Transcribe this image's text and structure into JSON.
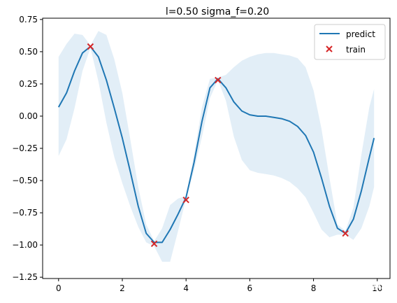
{
  "chart_data": {
    "type": "line",
    "title": "l=0.50 sigma_f=0.20",
    "xlabel": "",
    "ylabel": "",
    "xlim": [
      -0.5,
      10.4
    ],
    "ylim": [
      -1.26,
      0.76
    ],
    "x_ticks": [
      0,
      2,
      4,
      6,
      8,
      10
    ],
    "x_tick_labels": [
      "0",
      "2",
      "4",
      "6",
      "8",
      "10"
    ],
    "y_ticks": [
      0.75,
      0.5,
      0.25,
      0.0,
      -0.25,
      -0.5,
      -0.75,
      -1.0,
      -1.25
    ],
    "y_tick_labels": [
      "0.75",
      "0.50",
      "0.25",
      "0.00",
      "−0.25",
      "−0.50",
      "−0.75",
      "−1.00",
      "−1.25"
    ],
    "grid": false,
    "legend_position": "top-right",
    "colors": {
      "predict": "#1f77b4",
      "train": "#d62728",
      "band": "#cfe3f2"
    },
    "series": [
      {
        "name": "predict",
        "kind": "line",
        "x": [
          0,
          0.25,
          0.5,
          0.75,
          1.0,
          1.25,
          1.5,
          1.75,
          2.0,
          2.25,
          2.5,
          2.75,
          3.0,
          3.25,
          3.5,
          3.75,
          4.0,
          4.25,
          4.5,
          4.75,
          5.0,
          5.25,
          5.5,
          5.75,
          6.0,
          6.25,
          6.5,
          6.75,
          7.0,
          7.25,
          7.5,
          7.75,
          8.0,
          8.25,
          8.5,
          8.75,
          9.0,
          9.25,
          9.5,
          9.75,
          9.9
        ],
        "y": [
          0.07,
          0.18,
          0.35,
          0.49,
          0.54,
          0.46,
          0.28,
          0.06,
          -0.17,
          -0.43,
          -0.7,
          -0.91,
          -0.98,
          -0.98,
          -0.88,
          -0.76,
          -0.63,
          -0.36,
          -0.04,
          0.22,
          0.29,
          0.22,
          0.11,
          0.04,
          0.01,
          0.0,
          0.0,
          -0.01,
          -0.02,
          -0.04,
          -0.08,
          -0.15,
          -0.28,
          -0.48,
          -0.7,
          -0.87,
          -0.91,
          -0.8,
          -0.58,
          -0.32,
          -0.17
        ]
      },
      {
        "name": "",
        "kind": "band",
        "x": [
          0,
          0.25,
          0.5,
          0.75,
          1.0,
          1.25,
          1.5,
          1.75,
          2.0,
          2.25,
          2.5,
          2.75,
          3.0,
          3.25,
          3.5,
          3.75,
          4.0,
          4.25,
          4.5,
          4.75,
          5.0,
          5.25,
          5.5,
          5.75,
          6.0,
          6.25,
          6.5,
          6.75,
          7.0,
          7.25,
          7.5,
          7.75,
          8.0,
          8.25,
          8.5,
          8.75,
          9.0,
          9.25,
          9.5,
          9.75,
          9.9
        ],
        "upper": [
          0.46,
          0.56,
          0.64,
          0.63,
          0.55,
          0.66,
          0.63,
          0.44,
          0.18,
          -0.18,
          -0.55,
          -0.84,
          -0.97,
          -0.87,
          -0.69,
          -0.64,
          -0.62,
          -0.3,
          0.07,
          0.29,
          0.3,
          0.32,
          0.38,
          0.43,
          0.46,
          0.48,
          0.49,
          0.49,
          0.48,
          0.47,
          0.45,
          0.38,
          0.2,
          -0.1,
          -0.48,
          -0.84,
          -0.89,
          -0.71,
          -0.3,
          0.07,
          0.21
        ],
        "lower": [
          -0.31,
          -0.18,
          0.06,
          0.35,
          0.53,
          0.27,
          -0.05,
          -0.32,
          -0.52,
          -0.7,
          -0.86,
          -0.98,
          -1.01,
          -1.13,
          -1.13,
          -0.89,
          -0.64,
          -0.42,
          -0.16,
          0.14,
          0.28,
          0.12,
          -0.16,
          -0.34,
          -0.42,
          -0.44,
          -0.45,
          -0.46,
          -0.48,
          -0.51,
          -0.56,
          -0.63,
          -0.75,
          -0.88,
          -0.94,
          -0.92,
          -0.92,
          -0.96,
          -0.87,
          -0.7,
          -0.55
        ]
      },
      {
        "name": "train",
        "kind": "scatter",
        "x": [
          1.0,
          3.0,
          4.0,
          5.0,
          9.0
        ],
        "y": [
          0.54,
          -0.99,
          -0.65,
          0.28,
          -0.91
        ]
      }
    ],
    "watermark": "知乎 @Eureka"
  }
}
